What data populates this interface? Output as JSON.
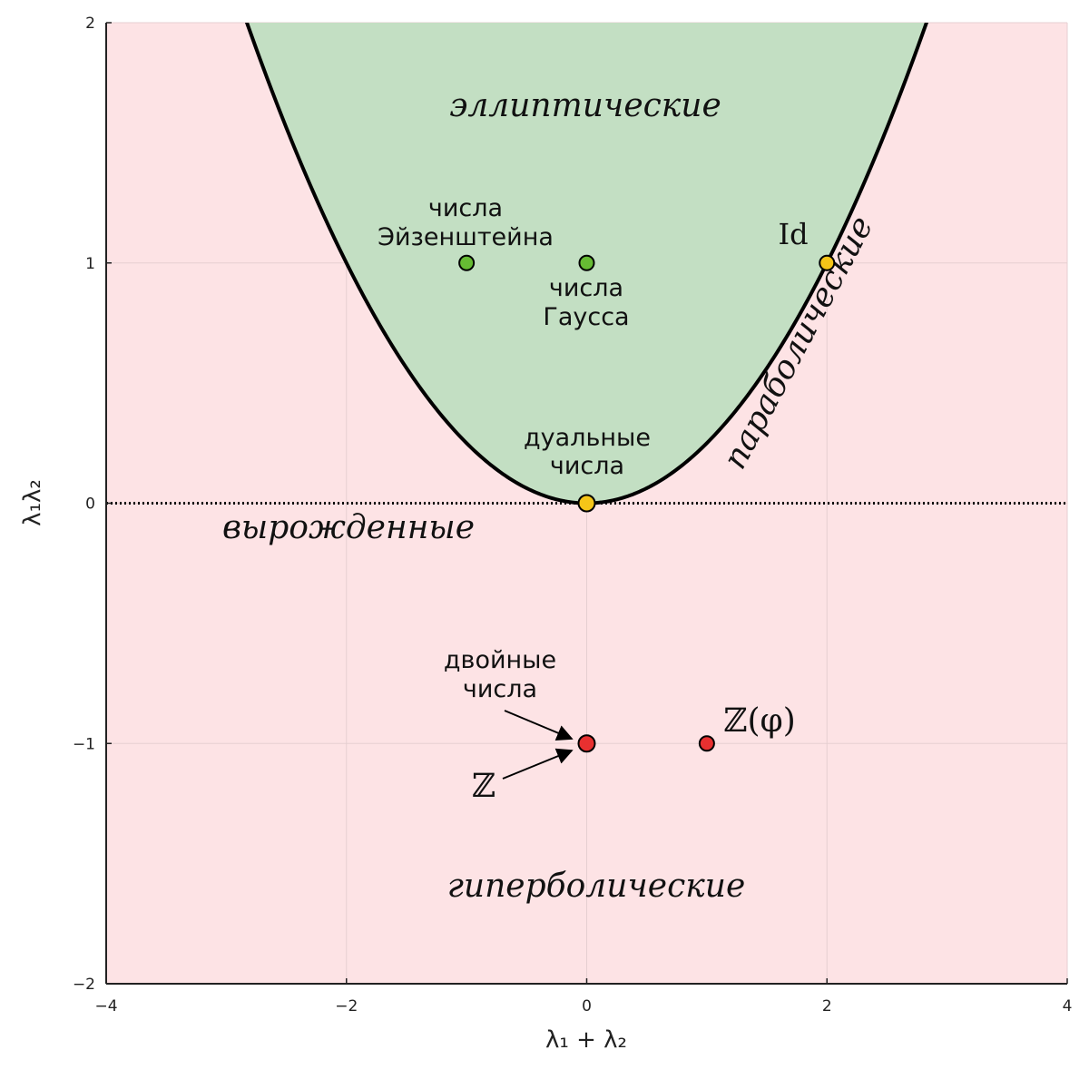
{
  "chart_data": {
    "type": "scatter",
    "xlabel": "λ₁ + λ₂",
    "ylabel": "λ₁λ₂",
    "xlim": [
      -4,
      4
    ],
    "ylim": [
      -2,
      2
    ],
    "xticks": [
      -4,
      -2,
      0,
      2,
      4
    ],
    "xtick_labels": [
      "−4",
      "−2",
      "0",
      "2",
      "4"
    ],
    "yticks": [
      -2,
      -1,
      0,
      1,
      2
    ],
    "ytick_labels": [
      "−2",
      "−1",
      "0",
      "1",
      "2"
    ],
    "grid": true,
    "boundary_curve": "y = x²/4",
    "degenerate_line": "y = 0",
    "regions": {
      "elliptic": "эллиптические",
      "parabolic": "параболические",
      "degenerate": "вырожденные",
      "hyperbolic": "гиперболические"
    },
    "points": [
      {
        "x": -1,
        "y": 1,
        "color": "#66bb33",
        "label_lines": [
          "числа",
          "Эйзенштейна"
        ]
      },
      {
        "x": 0,
        "y": 1,
        "color": "#66bb33",
        "label_lines": [
          "числа",
          "Гаусса"
        ]
      },
      {
        "x": 2,
        "y": 1,
        "color": "#f5c518",
        "label_lines": [
          "Id"
        ]
      },
      {
        "x": 0,
        "y": 0,
        "color": "#f5c518",
        "label_lines": [
          "дуальные",
          "числа"
        ]
      },
      {
        "x": 0,
        "y": -1,
        "color": "#e83030",
        "label_lines": [
          "двойные",
          "числа"
        ]
      },
      {
        "x": 1,
        "y": -1,
        "color": "#e83030",
        "label_lines": [
          "ℤ(φ)"
        ]
      }
    ],
    "annotations": [
      {
        "text": "ℤ",
        "target_x": 0,
        "target_y": -1
      }
    ]
  },
  "colors": {
    "elliptic_fill": "#c3dfc3",
    "outer_fill": "#fde3e5",
    "curve": "#000000",
    "grid": "#e6cfd1"
  }
}
